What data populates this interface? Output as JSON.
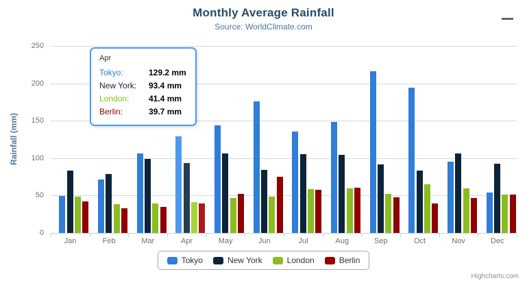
{
  "chart": {
    "title": "Monthly Average Rainfall",
    "subtitle": "Source: WorldClimate.com",
    "y_axis_title": "Rainfall (mm)",
    "credits": "Highcharts.com"
  },
  "chart_data": {
    "type": "bar",
    "title": "Monthly Average Rainfall",
    "subtitle": "Source: WorldClimate.com",
    "xlabel": "",
    "ylabel": "Rainfall (mm)",
    "ylim": [
      0,
      250
    ],
    "yticks": [
      0,
      50,
      100,
      150,
      200,
      250
    ],
    "grid": true,
    "legend_position": "bottom",
    "unit": "mm",
    "categories": [
      "Jan",
      "Feb",
      "Mar",
      "Apr",
      "May",
      "Jun",
      "Jul",
      "Aug",
      "Sep",
      "Oct",
      "Nov",
      "Dec"
    ],
    "series": [
      {
        "name": "Tokyo",
        "color": "#2f7ed8",
        "hover_color": "#4f98f0",
        "values": [
          49.9,
          71.5,
          106.4,
          129.2,
          144.0,
          176.0,
          135.6,
          148.5,
          216.4,
          194.1,
          95.6,
          54.4
        ]
      },
      {
        "name": "New York",
        "color": "#0d233a",
        "hover_color": "#273d54",
        "values": [
          83.6,
          78.8,
          98.5,
          93.4,
          106.0,
          84.5,
          105.0,
          104.3,
          91.2,
          83.5,
          106.6,
          92.3
        ]
      },
      {
        "name": "London",
        "color": "#8bbc21",
        "hover_color": "#a5d63b",
        "values": [
          48.9,
          38.8,
          39.3,
          41.4,
          47.0,
          48.3,
          59.0,
          59.6,
          52.4,
          65.2,
          59.3,
          51.2
        ]
      },
      {
        "name": "Berlin",
        "color": "#910000",
        "hover_color": "#ab1a1a",
        "values": [
          42.4,
          33.2,
          34.5,
          39.7,
          52.6,
          75.5,
          57.4,
          60.4,
          47.6,
          39.1,
          46.8,
          51.1
        ]
      }
    ],
    "hovered_category_index": 3
  },
  "tooltip": {
    "header": "Apr",
    "rows": [
      {
        "name": "Tokyo:",
        "value": "129.2 mm",
        "color": "#2f7ed8"
      },
      {
        "name": "New York:",
        "value": "93.4 mm",
        "color": "#0d233a"
      },
      {
        "name": "London:",
        "value": "41.4 mm",
        "color": "#8bbc21"
      },
      {
        "name": "Berlin:",
        "value": "39.7 mm",
        "color": "#910000"
      }
    ]
  },
  "legend": {
    "items": [
      {
        "label": "Tokyo",
        "color": "#2f7ed8"
      },
      {
        "label": "New York",
        "color": "#0d233a"
      },
      {
        "label": "London",
        "color": "#8bbc21"
      },
      {
        "label": "Berlin",
        "color": "#910000"
      }
    ]
  }
}
